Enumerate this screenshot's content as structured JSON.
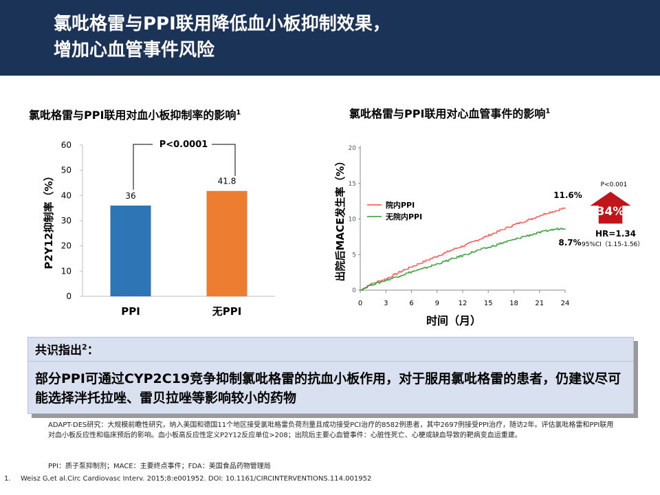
{
  "header": {
    "title_line1": "氯吡格雷与PPI联用降低血小板抑制效果，",
    "title_line2": "增加心血管事件风险"
  },
  "left_chart": {
    "title": "氯吡格雷与PPI联用对血小板抑制率的影响",
    "title_sup": "1",
    "ylabel": "P2Y12抑制率（%）",
    "yticks": [
      "0",
      "10",
      "20",
      "30",
      "40",
      "50",
      "60"
    ],
    "pvalue": "P<0.0001",
    "value_labels": [
      "36",
      "41.8"
    ],
    "categories": [
      "PPI",
      "无PPI"
    ]
  },
  "right_chart": {
    "title": "氯吡格雷与PPI联用对心血管事件的影响",
    "title_sup": "1",
    "ylabel": "出院后MACE发生率（%）",
    "xlabel": "时间（月）",
    "yticks": [
      "0",
      "5",
      "10",
      "15",
      "20"
    ],
    "xticks": [
      "0",
      "3",
      "6",
      "9",
      "12",
      "15",
      "18",
      "21",
      "24"
    ],
    "legend": [
      "院内PPI",
      "无院内PPI"
    ],
    "end_label_ppi": "11.6%",
    "end_label_noppi": "8.7%",
    "pvalue": "P<0.001",
    "increase": "34%",
    "hr": "HR=1.34",
    "ci": "95%CI（1.15-1.56）"
  },
  "chart_data": [
    {
      "type": "bar",
      "title": "氯吡格雷与PPI联用对血小板抑制率的影响",
      "categories": [
        "PPI",
        "无PPI"
      ],
      "values": [
        36,
        41.8
      ],
      "ylabel": "P2Y12抑制率（%）",
      "ylim": [
        0,
        60
      ],
      "colors": [
        "#2e75b6",
        "#ed7d31"
      ]
    },
    {
      "type": "line",
      "title": "氯吡格雷与PPI联用对心血管事件的影响",
      "xlabel": "时间（月）",
      "ylabel": "出院后MACE发生率（%）",
      "xlim": [
        0,
        24
      ],
      "ylim": [
        0,
        20
      ],
      "x": [
        0,
        1,
        2,
        3,
        4,
        5,
        6,
        7,
        8,
        9,
        10,
        11,
        12,
        13,
        14,
        15,
        16,
        17,
        18,
        19,
        20,
        21,
        22,
        23,
        24
      ],
      "series": [
        {
          "name": "院内PPI",
          "color": "#ff4b4b",
          "values": [
            0,
            0.7,
            1.2,
            1.6,
            2.2,
            2.8,
            3.3,
            3.8,
            4.3,
            4.8,
            5.3,
            5.8,
            6.2,
            6.7,
            7.2,
            7.7,
            8.2,
            8.7,
            9.2,
            9.6,
            10.0,
            10.5,
            10.9,
            11.2,
            11.6
          ]
        },
        {
          "name": "无院内PPI",
          "color": "#2e9a2e",
          "values": [
            0,
            0.7,
            1.0,
            1.4,
            1.8,
            2.2,
            2.6,
            2.9,
            3.3,
            3.7,
            4.1,
            4.5,
            4.9,
            5.3,
            5.7,
            6.0,
            6.4,
            6.8,
            7.1,
            7.5,
            7.8,
            8.1,
            8.4,
            8.6,
            8.7
          ]
        }
      ],
      "annotations": [
        "11.6%",
        "8.7%",
        "P<0.001",
        "34%",
        "HR=1.34",
        "95%CI（1.15-1.56）"
      ]
    }
  ],
  "consensus": {
    "title": "共识指出",
    "title_sup": "2",
    "title_suffix": "：",
    "body": "部分PPI可通过CYP2C19竞争抑制氯吡格雷的抗血小板作用，对于服用氯吡格雷的患者，仍建议尽可能选择泮托拉唑、雷贝拉唑等影响较小的药物"
  },
  "footnotes": {
    "study": "ADAPT-DES研究：大规模前瞻性研究，纳入美国和德国11个地区接受氯吡格雷负荷剂量且成功接受PCI治疗的8582例患者，其中2697例接受PPI治疗，随访2年。评估氯吡格雷和PPI联用对血小板反应性和临床预后的影响。血小板高反应性定义P2Y12反应单位>208；出院后主要心血管事件：心脏性死亡、心梗或缺血导致的靶病变血运重建。",
    "abbreviations": "PPI：质子泵抑制剂；MACE：主要终点事件；FDA：美国食品药物管理局",
    "ref_num": "1.",
    "ref_text": "Weisz G,et al.Circ Cardiovasc Interv. 2015;8:e001952. DOI: 10.1161/CIRCINTERVENTIONS.114.001952"
  }
}
